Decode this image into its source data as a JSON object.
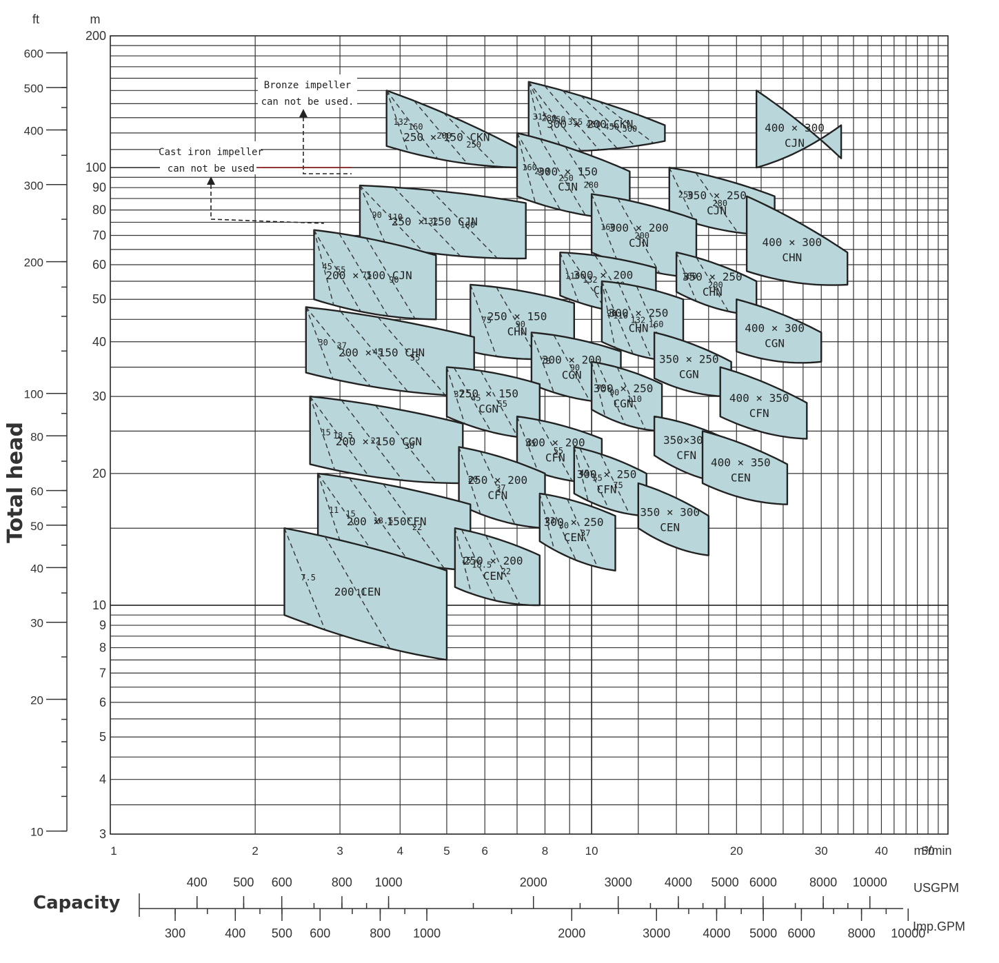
{
  "chart_data": {
    "type": "pump selection chart",
    "scales": {
      "x": "log",
      "y": "log"
    },
    "x_axis": {
      "range": [
        1,
        55
      ],
      "tick_labels": [
        "1",
        "2",
        "3",
        "4",
        "5",
        "6",
        "8",
        "10",
        "20",
        "30",
        "40",
        "50"
      ],
      "unit_label": "m³/min"
    },
    "y_axis_m": {
      "range": [
        3,
        200
      ],
      "unit_label": "m",
      "tick_labels": [
        "200",
        "100",
        "90",
        "80",
        "70",
        "60",
        "50",
        "40",
        "30",
        "20",
        "10",
        "9",
        "8",
        "7",
        "6",
        "5",
        "4",
        "3"
      ]
    },
    "y_axis_ft": {
      "unit_label": "ft",
      "tick_labels": [
        "600",
        "500",
        "400",
        "300",
        "200",
        "100",
        "80",
        "60",
        "50",
        "40",
        "30",
        "20",
        "10"
      ]
    },
    "y_title": "Total head",
    "capacity_title": "Capacity",
    "usgpm": {
      "label": "USGPM",
      "ticks": [
        "400",
        "500",
        "600",
        "800",
        "1000",
        "2000",
        "3000",
        "4000",
        "5000",
        "6000",
        "8000",
        "10000"
      ]
    },
    "impgpm": {
      "label": "Imp.GPM",
      "ticks": [
        "300",
        "400",
        "500",
        "600",
        "800",
        "1000",
        "2000",
        "3000",
        "4000",
        "5000",
        "6000",
        "8000",
        "10000"
      ]
    },
    "notes": [
      {
        "lines": [
          "Bronze impeller",
          "can not be used."
        ]
      },
      {
        "lines": [
          "Cast iron impeller",
          "can not be used"
        ]
      }
    ],
    "zones": [
      {
        "label": [
          "250 × 150 CKN"
        ],
        "q": [
          3.75,
          7.1
        ],
        "h": [
          [
            112,
            100
          ],
          [
            150,
            110
          ]
        ],
        "motors": [
          "132",
          "160",
          "200",
          "250"
        ]
      },
      {
        "label": [
          "300 × 200 CKN"
        ],
        "q": [
          7.4,
          14.2
        ],
        "h": [
          [
            110,
            115
          ],
          [
            157,
            125
          ]
        ],
        "motors": [
          "315",
          "280",
          "250",
          "355",
          "400",
          "450",
          "500"
        ]
      },
      {
        "label": [
          "400 × 300",
          "CJN"
        ],
        "q": [
          22.0,
          33.0
        ],
        "h": [
          [
            100,
            125
          ],
          [
            150,
            105
          ]
        ],
        "motors": []
      },
      {
        "label": [
          "300 × 150",
          "CJN"
        ],
        "q": [
          7.0,
          12.0
        ],
        "h": [
          [
            86,
            76
          ],
          [
            120,
            98
          ]
        ],
        "motors": [
          "160",
          "200",
          "250",
          "280"
        ]
      },
      {
        "label": [
          "250 × 150 CJN"
        ],
        "q": [
          3.3,
          7.3
        ],
        "h": [
          [
            68,
            62
          ],
          [
            91,
            83
          ]
        ],
        "motors": [
          "90",
          "110",
          "132",
          "160"
        ]
      },
      {
        "label": [
          "350 × 250",
          "CJN"
        ],
        "q": [
          14.5,
          24.0
        ],
        "h": [
          [
            78,
            70
          ],
          [
            100,
            86
          ]
        ],
        "motors": [
          "250",
          "280"
        ]
      },
      {
        "label": [
          "300 × 200",
          "CJN"
        ],
        "q": [
          10.0,
          16.5
        ],
        "h": [
          [
            64,
            56
          ],
          [
            87,
            76
          ]
        ],
        "motors": [
          "160",
          "200"
        ]
      },
      {
        "label": [
          "400 × 300",
          "CHN"
        ],
        "q": [
          21.0,
          34.0
        ],
        "h": [
          [
            58,
            54
          ],
          [
            86,
            64
          ]
        ],
        "motors": []
      },
      {
        "label": [
          "200 × 100 CJN"
        ],
        "q": [
          2.65,
          4.75
        ],
        "h": [
          [
            50,
            45
          ],
          [
            72,
            63
          ]
        ],
        "motors": [
          "45",
          "55",
          "75",
          "90"
        ]
      },
      {
        "label": [
          "300 × 200",
          "CHN"
        ],
        "q": [
          8.6,
          13.6
        ],
        "h": [
          [
            51,
            46
          ],
          [
            64,
            59
          ]
        ],
        "motors": [
          "110",
          "132",
          "160"
        ]
      },
      {
        "label": [
          "350 × 250",
          "CHN"
        ],
        "q": [
          15.0,
          22.0
        ],
        "h": [
          [
            52,
            46
          ],
          [
            64,
            55
          ]
        ],
        "motors": [
          "160",
          "200"
        ]
      },
      {
        "label": [
          "250 × 150",
          "CHN"
        ],
        "q": [
          5.6,
          9.2
        ],
        "h": [
          [
            38,
            37
          ],
          [
            54,
            49
          ]
        ],
        "motors": [
          "75",
          "90"
        ]
      },
      {
        "label": [
          "300 × 250",
          "CHN"
        ],
        "q": [
          10.5,
          15.5
        ],
        "h": [
          [
            40,
            36
          ],
          [
            55,
            50
          ]
        ],
        "motors": [
          "90",
          "110",
          "132",
          "160"
        ]
      },
      {
        "label": [
          "400 × 300",
          "CGN"
        ],
        "q": [
          20.0,
          30.0
        ],
        "h": [
          [
            38,
            36
          ],
          [
            50,
            42
          ]
        ],
        "motors": []
      },
      {
        "label": [
          "200 × 150 CHN"
        ],
        "q": [
          2.55,
          5.7
        ],
        "h": [
          [
            34,
            30
          ],
          [
            48,
            41
          ]
        ],
        "motors": [
          "30",
          "37",
          "45",
          "55"
        ]
      },
      {
        "label": [
          "300 × 200",
          "CGN"
        ],
        "q": [
          7.5,
          11.5
        ],
        "h": [
          [
            32,
            29
          ],
          [
            42,
            38
          ]
        ],
        "motors": [
          "75",
          "90"
        ]
      },
      {
        "label": [
          "350 × 250",
          "CGN"
        ],
        "q": [
          13.5,
          19.5
        ],
        "h": [
          [
            33,
            30
          ],
          [
            42,
            36
          ]
        ],
        "motors": []
      },
      {
        "label": [
          "250 × 150",
          "CGN"
        ],
        "q": [
          5.0,
          7.8
        ],
        "h": [
          [
            27,
            24
          ],
          [
            35,
            32
          ]
        ],
        "motors": [
          "37",
          "45",
          "55"
        ]
      },
      {
        "label": [
          "300 × 250",
          "CGN"
        ],
        "q": [
          10.0,
          14.0
        ],
        "h": [
          [
            28,
            25
          ],
          [
            36,
            32
          ]
        ],
        "motors": [
          "75",
          "90",
          "110"
        ]
      },
      {
        "label": [
          "400 × 350",
          "CFN"
        ],
        "q": [
          18.5,
          28.0
        ],
        "h": [
          [
            27,
            24
          ],
          [
            35,
            29
          ]
        ],
        "motors": []
      },
      {
        "label": [
          "200 × 150 CGN"
        ],
        "q": [
          2.6,
          5.4
        ],
        "h": [
          [
            21,
            19
          ],
          [
            30,
            26
          ]
        ],
        "motors": [
          "15",
          "18.5",
          "22",
          "30"
        ]
      },
      {
        "label": [
          "300 × 200",
          "CFN"
        ],
        "q": [
          7.0,
          10.5
        ],
        "h": [
          [
            21,
            19
          ],
          [
            27,
            24
          ]
        ],
        "motors": [
          "45",
          "55"
        ]
      },
      {
        "label": [
          "350×300",
          "CFN"
        ],
        "q": [
          13.5,
          19.0
        ],
        "h": [
          [
            22,
            19
          ],
          [
            27,
            24
          ]
        ],
        "motors": []
      },
      {
        "label": [
          "250 × 200",
          "CFN"
        ],
        "q": [
          5.3,
          8.0
        ],
        "h": [
          [
            17,
            15
          ],
          [
            23,
            20
          ]
        ],
        "motors": [
          "30",
          "37"
        ]
      },
      {
        "label": [
          "300 × 250",
          "CFN"
        ],
        "q": [
          9.2,
          13.0
        ],
        "h": [
          [
            18,
            16
          ],
          [
            23,
            20
          ]
        ],
        "motors": [
          "45",
          "55",
          "75"
        ]
      },
      {
        "label": [
          "400 × 350",
          "CEN"
        ],
        "q": [
          17.0,
          25.5
        ],
        "h": [
          [
            19,
            17
          ],
          [
            25,
            21
          ]
        ],
        "motors": []
      },
      {
        "label": [
          "200 × 150CFN"
        ],
        "q": [
          2.7,
          5.6
        ],
        "h": [
          [
            14,
            12
          ],
          [
            20,
            17
          ]
        ],
        "motors": [
          "11",
          "15",
          "18.5",
          "22"
        ]
      },
      {
        "label": [
          "350 × 300",
          "CEN"
        ],
        "q": [
          12.5,
          17.5
        ],
        "h": [
          [
            15,
            13
          ],
          [
            19,
            16
          ]
        ],
        "motors": []
      },
      {
        "label": [
          "300 × 250",
          "CEN"
        ],
        "q": [
          7.8,
          11.2
        ],
        "h": [
          [
            14,
            12
          ],
          [
            18,
            16
          ]
        ],
        "motors": [
          "22",
          "30",
          "37"
        ]
      },
      {
        "label": [
          "250 × 200",
          "CEN"
        ],
        "q": [
          5.2,
          7.8
        ],
        "h": [
          [
            11,
            10
          ],
          [
            15,
            13
          ]
        ],
        "motors": [
          "15",
          "18.5",
          "22"
        ]
      },
      {
        "label": [
          "200 CEN"
        ],
        "q": [
          2.3,
          5.0
        ],
        "h": [
          [
            9.5,
            7.5
          ],
          [
            15,
            12
          ]
        ],
        "motors": [
          "7.5",
          "11"
        ]
      }
    ]
  }
}
